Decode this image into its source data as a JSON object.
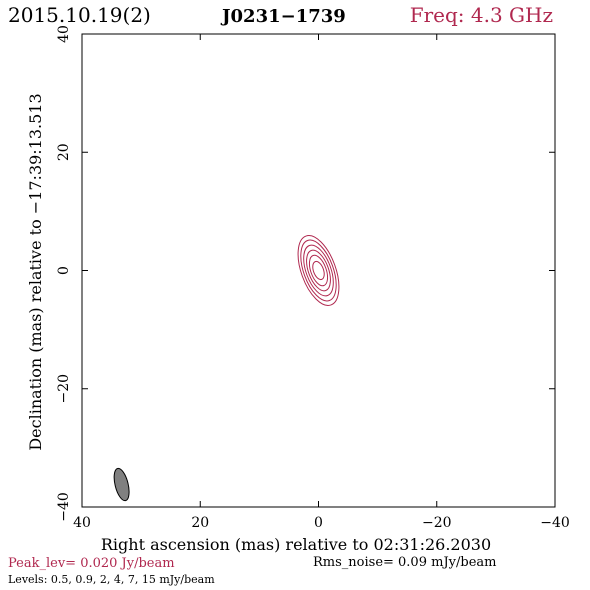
{
  "header": {
    "date": "2015.10.19(2)",
    "source": "J0231−1739",
    "freq": "Freq: 4.3 GHz"
  },
  "footer": {
    "peak": "Peak_lev=  0.020 Jy/beam",
    "rms": "Rms_noise= 0.09 mJy/beam",
    "levels": "Levels: 0.5, 0.9,   2,   4,   7,  15 mJy/beam"
  },
  "colors": {
    "accent": "#b0284f",
    "beam_fill": "#808080",
    "axis": "#000000"
  },
  "chart_data": {
    "type": "contour",
    "xlabel": "Right ascension (mas) relative to 02:31:26.2030",
    "ylabel": "Declination (mas) relative to −17:39:13.513",
    "xlim": [
      40,
      -40
    ],
    "ylim": [
      -40,
      40
    ],
    "xticks": [
      40,
      20,
      0,
      -20,
      -40
    ],
    "yticks": [
      -40,
      -20,
      0,
      20,
      40
    ],
    "xtick_labels": [
      "40",
      "20",
      "0",
      "−20",
      "−40"
    ],
    "ytick_labels": [
      "−40",
      "−20",
      "0",
      "20",
      "40"
    ],
    "contours_mjy": [
      0.5,
      0.9,
      2,
      4,
      7,
      15
    ],
    "source_component": {
      "center": [
        0,
        0
      ],
      "contour_ellipses": [
        {
          "level": 0.5,
          "semi_major": 6.2,
          "semi_minor": 2.9,
          "pa_deg": -20
        },
        {
          "level": 0.9,
          "semi_major": 5.4,
          "semi_minor": 2.5,
          "pa_deg": -20
        },
        {
          "level": 2,
          "semi_major": 4.5,
          "semi_minor": 2.1,
          "pa_deg": -20
        },
        {
          "level": 4,
          "semi_major": 3.6,
          "semi_minor": 1.7,
          "pa_deg": -20
        },
        {
          "level": 7,
          "semi_major": 2.7,
          "semi_minor": 1.3,
          "pa_deg": -20
        },
        {
          "level": 15,
          "semi_major": 1.6,
          "semi_minor": 0.85,
          "pa_deg": -20
        }
      ]
    },
    "beam": {
      "center": [
        33.3,
        -36.2
      ],
      "semi_major": 2.8,
      "semi_minor": 1.1,
      "pa_deg": -14
    }
  }
}
